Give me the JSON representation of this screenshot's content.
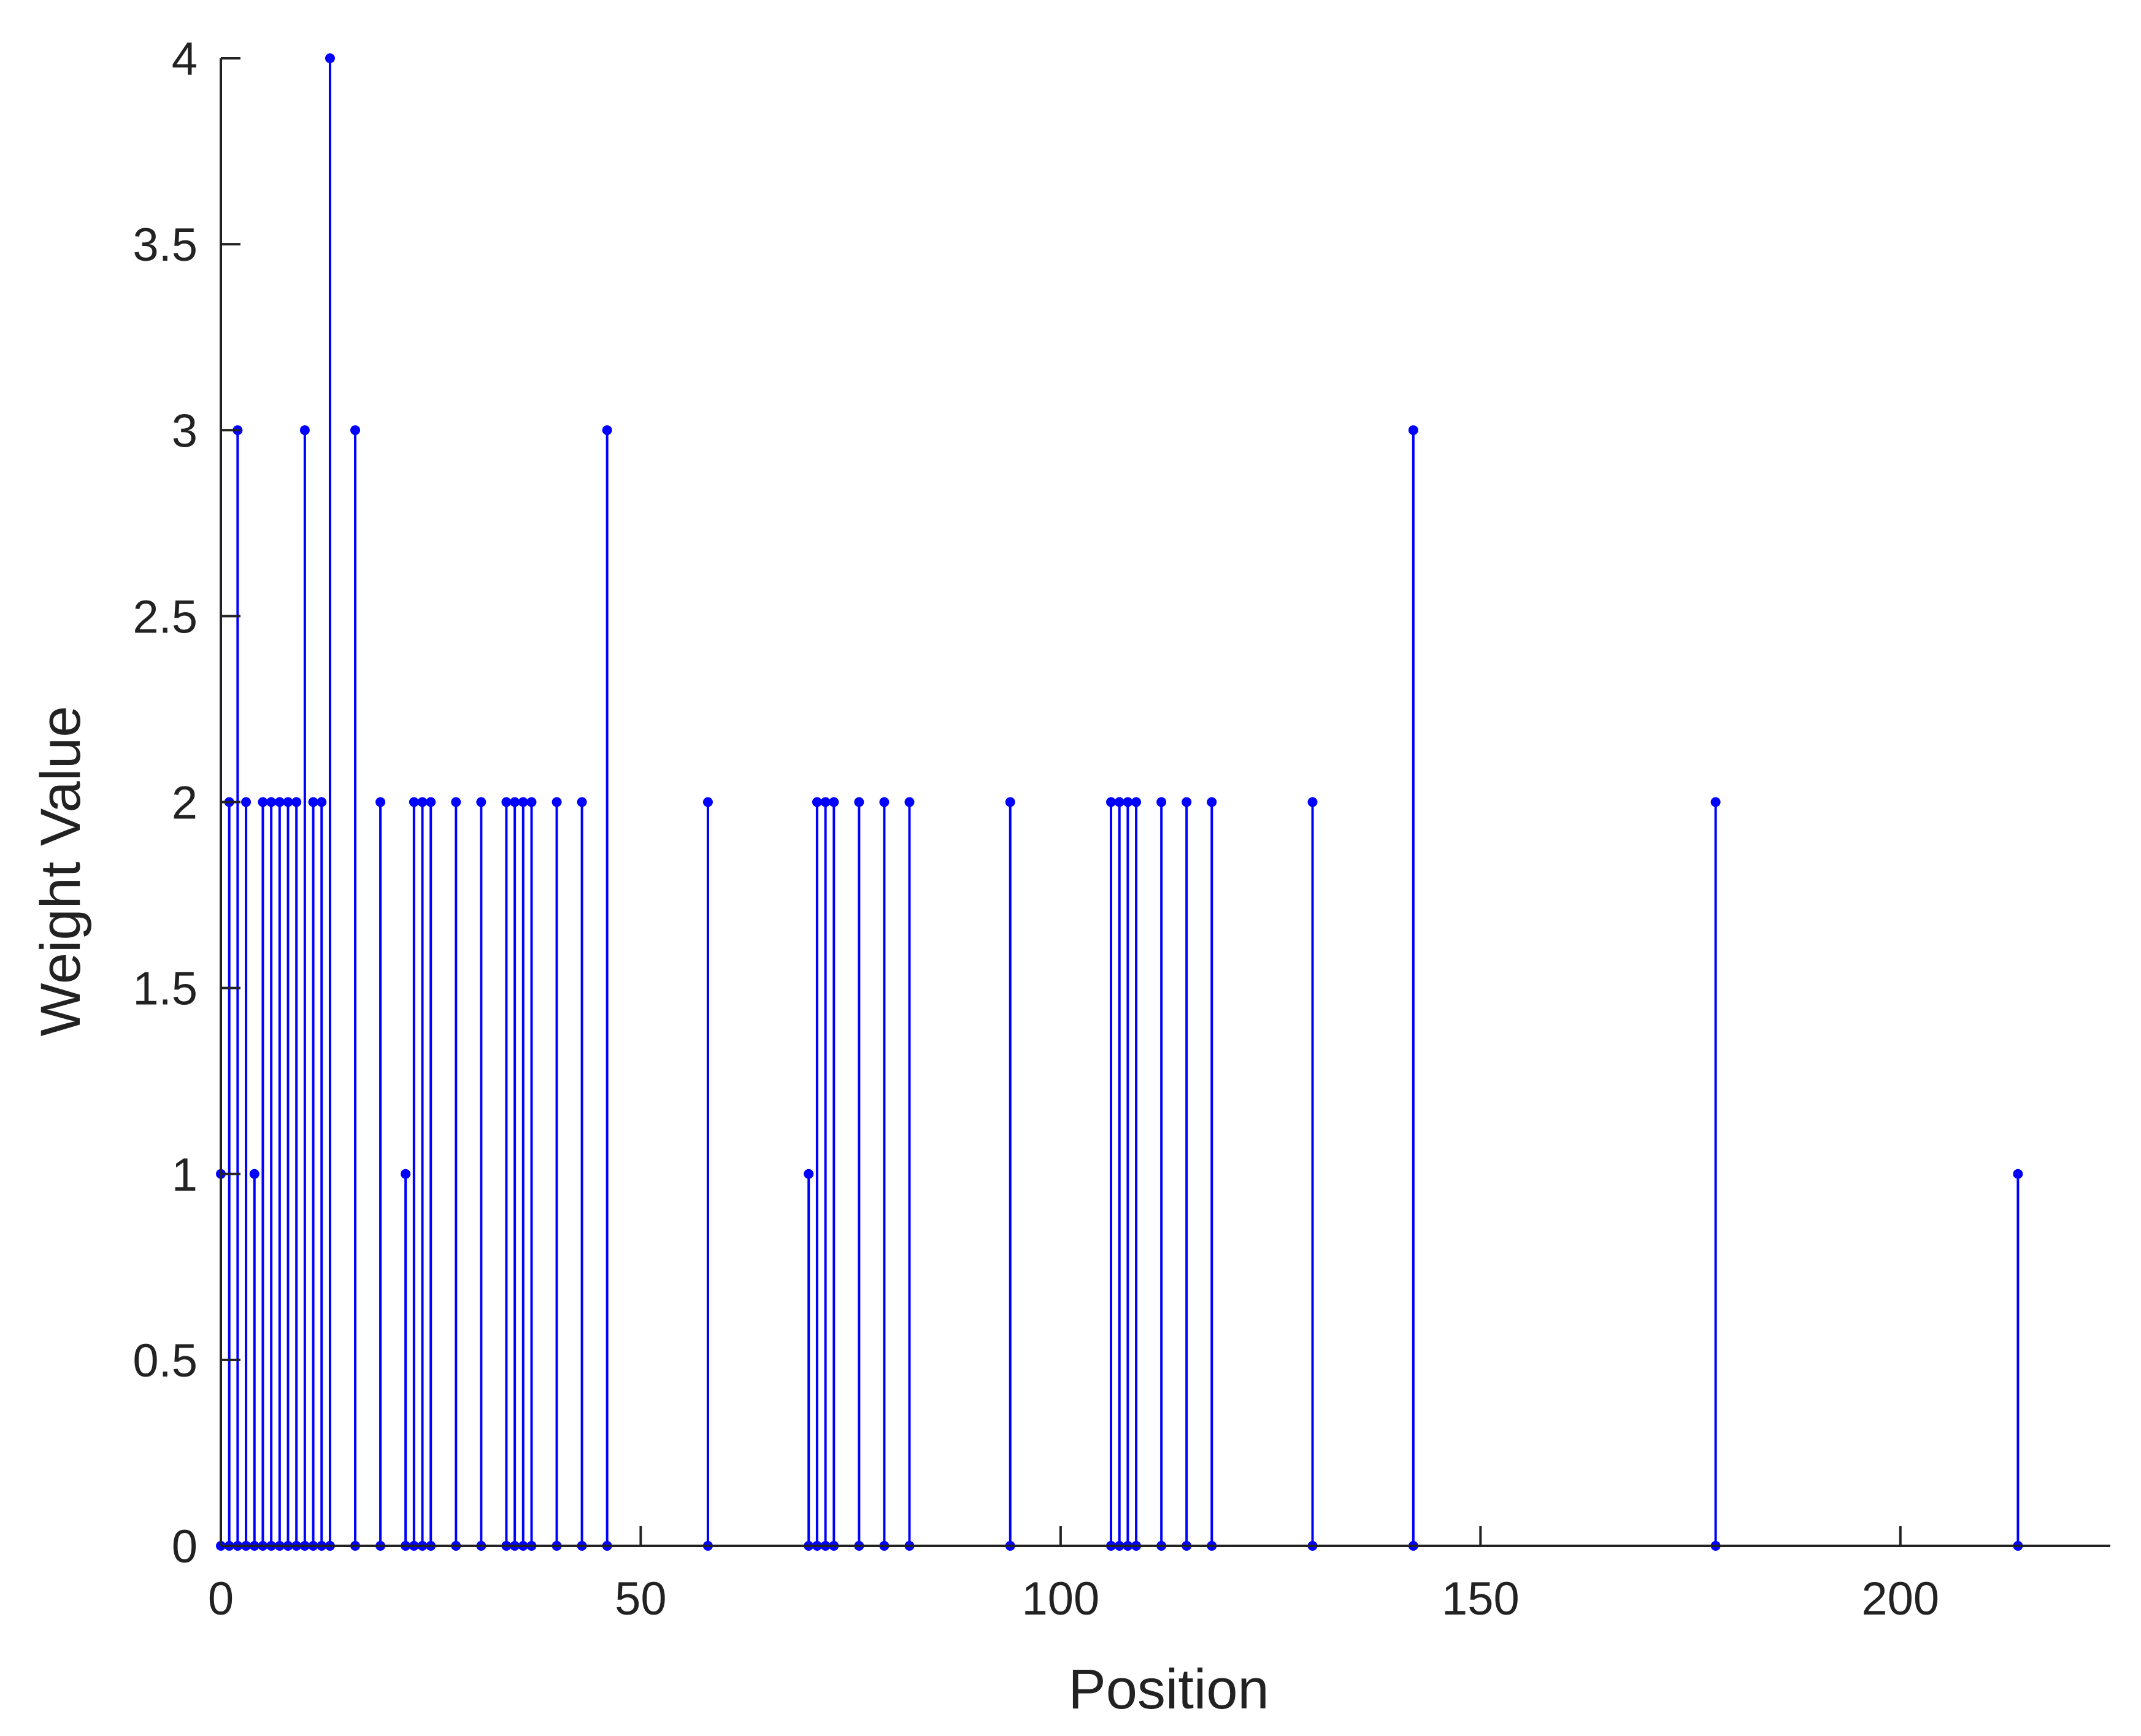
{
  "chart_data": {
    "type": "stem",
    "title": "",
    "xlabel": "Position",
    "ylabel": "Weight Value",
    "xlim": [
      0,
      225
    ],
    "ylim": [
      0,
      4
    ],
    "xticks": [
      0,
      50,
      100,
      150,
      200
    ],
    "yticks": [
      0,
      0.5,
      1,
      1.5,
      2,
      2.5,
      3,
      3.5,
      4
    ],
    "xtick_labels": [
      "0",
      "50",
      "100",
      "150",
      "200"
    ],
    "ytick_labels": [
      "0",
      "0.5",
      "1",
      "1.5",
      "2",
      "2.5",
      "3",
      "3.5",
      "4"
    ],
    "grid": false,
    "color": "#0000ff",
    "axis_color": "#222222",
    "x": [
      0,
      1,
      2,
      3,
      4,
      5,
      6,
      7,
      8,
      9,
      10,
      11,
      12,
      13,
      16,
      19,
      22,
      23,
      24,
      25,
      28,
      31,
      34,
      35,
      36,
      37,
      40,
      43,
      46,
      58,
      70,
      71,
      72,
      73,
      76,
      79,
      82,
      94,
      106,
      107,
      108,
      109,
      112,
      115,
      118,
      130,
      142,
      178,
      214
    ],
    "y": [
      1,
      2,
      3,
      2,
      1,
      2,
      2,
      2,
      2,
      2,
      3,
      2,
      2,
      4,
      3,
      2,
      1,
      2,
      2,
      2,
      2,
      2,
      2,
      2,
      2,
      2,
      2,
      2,
      3,
      2,
      1,
      2,
      2,
      2,
      2,
      2,
      2,
      2,
      2,
      2,
      2,
      2,
      2,
      2,
      2,
      2,
      3,
      2,
      1
    ]
  }
}
